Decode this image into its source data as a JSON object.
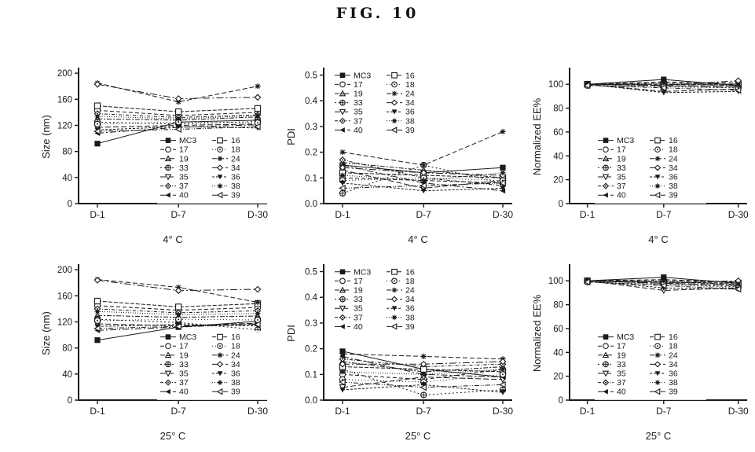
{
  "figure": {
    "title": "FIG. 10"
  },
  "ink_color": "#1a1a1a",
  "legend_columns": {
    "left": [
      "MC3",
      "17",
      "19",
      "33",
      "35",
      "37",
      "40"
    ],
    "right": [
      "16",
      "18",
      "24",
      "34",
      "36",
      "38",
      "39"
    ]
  },
  "series_styles": [
    {
      "name": "MC3",
      "marker": "square_filled",
      "dash": ""
    },
    {
      "name": "17",
      "marker": "circle_open",
      "dash": "5 3"
    },
    {
      "name": "19",
      "marker": "triangle_up_bar",
      "dash": "6 2 2 2"
    },
    {
      "name": "33",
      "marker": "circle_plus",
      "dash": "2 3"
    },
    {
      "name": "35",
      "marker": "triangle_down_open",
      "dash": "7 3"
    },
    {
      "name": "37",
      "marker": "diamond_dot",
      "dash": "4 2 1 2"
    },
    {
      "name": "40",
      "marker": "triangle_left_filled",
      "dash": "8 3 2 3"
    },
    {
      "name": "16",
      "marker": "square_open",
      "dash": "5 2"
    },
    {
      "name": "18",
      "marker": "circle_dot",
      "dash": "1 3"
    },
    {
      "name": "24",
      "marker": "asterisk",
      "dash": "6 3"
    },
    {
      "name": "34",
      "marker": "diamond_open",
      "dash": "9 3 2 3"
    },
    {
      "name": "36",
      "marker": "triangle_down_filled",
      "dash": "3 2"
    },
    {
      "name": "38",
      "marker": "star_filled",
      "dash": "1 2"
    },
    {
      "name": "39",
      "marker": "triangle_left_open",
      "dash": "6 2 1 2 1 2"
    }
  ],
  "chart_data": [
    {
      "id": "size-4c",
      "type": "line",
      "ylabel": "Size (nm)",
      "xlabel": "4° C",
      "categories": [
        "D-1",
        "D-7",
        "D-30"
      ],
      "ylim": [
        0,
        205
      ],
      "yticks": [
        0,
        40,
        80,
        120,
        160,
        200
      ],
      "ytick_labels": [
        "0",
        "40",
        "80",
        "120",
        "160",
        "200"
      ],
      "legend_pos": "bottom-right",
      "series": [
        {
          "name": "MC3",
          "values": [
            92,
            125,
            128
          ]
        },
        {
          "name": "17",
          "values": [
            143,
            135,
            140
          ]
        },
        {
          "name": "19",
          "values": [
            130,
            128,
            133
          ]
        },
        {
          "name": "33",
          "values": [
            125,
            122,
            126
          ]
        },
        {
          "name": "35",
          "values": [
            117,
            120,
            122
          ]
        },
        {
          "name": "37",
          "values": [
            138,
            132,
            136
          ]
        },
        {
          "name": "40",
          "values": [
            108,
            117,
            121
          ]
        },
        {
          "name": "16",
          "values": [
            150,
            141,
            146
          ]
        },
        {
          "name": "18",
          "values": [
            122,
            125,
            124
          ]
        },
        {
          "name": "24",
          "values": [
            185,
            156,
            180
          ]
        },
        {
          "name": "34",
          "values": [
            183,
            161,
            163
          ]
        },
        {
          "name": "36",
          "values": [
            113,
            118,
            116
          ]
        },
        {
          "name": "38",
          "values": [
            134,
            130,
            135
          ]
        },
        {
          "name": "39",
          "values": [
            111,
            114,
            118
          ]
        }
      ]
    },
    {
      "id": "pdi-4c",
      "type": "line",
      "ylabel": "PDI",
      "xlabel": "4° C",
      "categories": [
        "D-1",
        "D-7",
        "D-30"
      ],
      "ylim": [
        0,
        0.52
      ],
      "yticks": [
        0,
        0.1,
        0.2,
        0.3,
        0.4,
        0.5
      ],
      "ytick_labels": [
        "0.0",
        "0.1",
        "0.2",
        "0.3",
        "0.4",
        "0.5"
      ],
      "legend_pos": "top-left",
      "series": [
        {
          "name": "MC3",
          "values": [
            0.15,
            0.12,
            0.14
          ]
        },
        {
          "name": "17",
          "values": [
            0.1,
            0.09,
            0.08
          ]
        },
        {
          "name": "19",
          "values": [
            0.16,
            0.13,
            0.1
          ]
        },
        {
          "name": "33",
          "values": [
            0.04,
            0.15,
            0.08
          ]
        },
        {
          "name": "35",
          "values": [
            0.13,
            0.06,
            0.09
          ]
        },
        {
          "name": "37",
          "values": [
            0.17,
            0.1,
            0.07
          ]
        },
        {
          "name": "40",
          "values": [
            0.15,
            0.08,
            0.05
          ]
        },
        {
          "name": "16",
          "values": [
            0.12,
            0.11,
            0.1
          ]
        },
        {
          "name": "18",
          "values": [
            0.09,
            0.1,
            0.09
          ]
        },
        {
          "name": "24",
          "values": [
            0.2,
            0.15,
            0.28
          ]
        },
        {
          "name": "34",
          "values": [
            0.14,
            0.12,
            0.11
          ]
        },
        {
          "name": "36",
          "values": [
            0.08,
            0.05,
            0.06
          ]
        },
        {
          "name": "38",
          "values": [
            0.11,
            0.09,
            0.12
          ]
        },
        {
          "name": "39",
          "values": [
            0.06,
            0.07,
            0.08
          ]
        }
      ]
    },
    {
      "id": "ee-4c",
      "type": "line",
      "ylabel": "Normalized EE%",
      "xlabel": "4° C",
      "categories": [
        "D-1",
        "D-7",
        "D-30"
      ],
      "ylim": [
        0,
        112
      ],
      "yticks": [
        0,
        20,
        40,
        60,
        80,
        100
      ],
      "ytick_labels": [
        "0",
        "20",
        "40",
        "60",
        "80",
        "100"
      ],
      "legend_pos": "bottom-right-inset",
      "series": [
        {
          "name": "MC3",
          "values": [
            100,
            104,
            99
          ]
        },
        {
          "name": "17",
          "values": [
            100,
            99,
            98
          ]
        },
        {
          "name": "19",
          "values": [
            100,
            100,
            99
          ]
        },
        {
          "name": "33",
          "values": [
            99,
            98,
            97
          ]
        },
        {
          "name": "35",
          "values": [
            100,
            94,
            96
          ]
        },
        {
          "name": "37",
          "values": [
            100,
            101,
            100
          ]
        },
        {
          "name": "40",
          "values": [
            100,
            99,
            98
          ]
        },
        {
          "name": "16",
          "values": [
            100,
            100,
            100
          ]
        },
        {
          "name": "18",
          "values": [
            99,
            98,
            97
          ]
        },
        {
          "name": "24",
          "values": [
            100,
            102,
            101
          ]
        },
        {
          "name": "34",
          "values": [
            100,
            99,
            103
          ]
        },
        {
          "name": "36",
          "values": [
            100,
            93,
            94
          ]
        },
        {
          "name": "38",
          "values": [
            100,
            101,
            99
          ]
        },
        {
          "name": "39",
          "values": [
            99,
            97,
            95
          ]
        }
      ]
    },
    {
      "id": "size-25c",
      "type": "line",
      "ylabel": "Size (nm)",
      "xlabel": "25° C",
      "categories": [
        "D-1",
        "D-7",
        "D-30"
      ],
      "ylim": [
        0,
        205
      ],
      "yticks": [
        0,
        40,
        80,
        120,
        160,
        200
      ],
      "ytick_labels": [
        "0",
        "40",
        "80",
        "120",
        "160",
        "200"
      ],
      "legend_pos": "bottom-right",
      "series": [
        {
          "name": "MC3",
          "values": [
            92,
            112,
            121
          ]
        },
        {
          "name": "17",
          "values": [
            145,
            138,
            142
          ]
        },
        {
          "name": "19",
          "values": [
            130,
            127,
            129
          ]
        },
        {
          "name": "33",
          "values": [
            124,
            119,
            108
          ]
        },
        {
          "name": "35",
          "values": [
            117,
            114,
            118
          ]
        },
        {
          "name": "37",
          "values": [
            140,
            134,
            137
          ]
        },
        {
          "name": "40",
          "values": [
            107,
            112,
            117
          ]
        },
        {
          "name": "16",
          "values": [
            152,
            143,
            148
          ]
        },
        {
          "name": "18",
          "values": [
            122,
            124,
            123
          ]
        },
        {
          "name": "24",
          "values": [
            185,
            173,
            150
          ]
        },
        {
          "name": "34",
          "values": [
            184,
            168,
            170
          ]
        },
        {
          "name": "36",
          "values": [
            113,
            116,
            114
          ]
        },
        {
          "name": "38",
          "values": [
            136,
            131,
            133
          ]
        },
        {
          "name": "39",
          "values": [
            110,
            113,
            116
          ]
        }
      ]
    },
    {
      "id": "pdi-25c",
      "type": "line",
      "ylabel": "PDI",
      "xlabel": "25° C",
      "categories": [
        "D-1",
        "D-7",
        "D-30"
      ],
      "ylim": [
        0,
        0.52
      ],
      "yticks": [
        0,
        0.1,
        0.2,
        0.3,
        0.4,
        0.5
      ],
      "ytick_labels": [
        "0.0",
        "0.1",
        "0.2",
        "0.3",
        "0.4",
        "0.5"
      ],
      "legend_pos": "top-left",
      "series": [
        {
          "name": "MC3",
          "values": [
            0.19,
            0.12,
            0.09
          ]
        },
        {
          "name": "17",
          "values": [
            0.1,
            0.08,
            0.12
          ]
        },
        {
          "name": "19",
          "values": [
            0.15,
            0.11,
            0.13
          ]
        },
        {
          "name": "33",
          "values": [
            0.12,
            0.02,
            0.04
          ]
        },
        {
          "name": "35",
          "values": [
            0.05,
            0.09,
            0.08
          ]
        },
        {
          "name": "37",
          "values": [
            0.16,
            0.13,
            0.14
          ]
        },
        {
          "name": "40",
          "values": [
            0.17,
            0.1,
            0.09
          ]
        },
        {
          "name": "16",
          "values": [
            0.13,
            0.12,
            0.11
          ]
        },
        {
          "name": "18",
          "values": [
            0.08,
            0.07,
            0.1
          ]
        },
        {
          "name": "24",
          "values": [
            0.18,
            0.17,
            0.16
          ]
        },
        {
          "name": "34",
          "values": [
            0.14,
            0.14,
            0.15
          ]
        },
        {
          "name": "36",
          "values": [
            0.04,
            0.06,
            0.03
          ]
        },
        {
          "name": "38",
          "values": [
            0.11,
            0.1,
            0.12
          ]
        },
        {
          "name": "39",
          "values": [
            0.07,
            0.05,
            0.06
          ]
        }
      ]
    },
    {
      "id": "ee-25c",
      "type": "line",
      "ylabel": "Normalized EE%",
      "xlabel": "25° C",
      "categories": [
        "D-1",
        "D-7",
        "D-30"
      ],
      "ylim": [
        0,
        112
      ],
      "yticks": [
        0,
        20,
        40,
        60,
        80,
        100
      ],
      "ytick_labels": [
        "0",
        "20",
        "40",
        "60",
        "80",
        "100"
      ],
      "legend_pos": "bottom-right-inset",
      "series": [
        {
          "name": "MC3",
          "values": [
            100,
            103,
            98
          ]
        },
        {
          "name": "17",
          "values": [
            100,
            98,
            96
          ]
        },
        {
          "name": "19",
          "values": [
            100,
            99,
            97
          ]
        },
        {
          "name": "33",
          "values": [
            99,
            97,
            95
          ]
        },
        {
          "name": "35",
          "values": [
            100,
            92,
            94
          ]
        },
        {
          "name": "37",
          "values": [
            100,
            100,
            99
          ]
        },
        {
          "name": "40",
          "values": [
            100,
            98,
            96
          ]
        },
        {
          "name": "16",
          "values": [
            100,
            99,
            98
          ]
        },
        {
          "name": "18",
          "values": [
            99,
            97,
            94
          ]
        },
        {
          "name": "24",
          "values": [
            100,
            101,
            99
          ]
        },
        {
          "name": "34",
          "values": [
            100,
            98,
            100
          ]
        },
        {
          "name": "36",
          "values": [
            100,
            94,
            93
          ]
        },
        {
          "name": "38",
          "values": [
            100,
            100,
            97
          ]
        },
        {
          "name": "39",
          "values": [
            99,
            96,
            93
          ]
        }
      ]
    }
  ]
}
